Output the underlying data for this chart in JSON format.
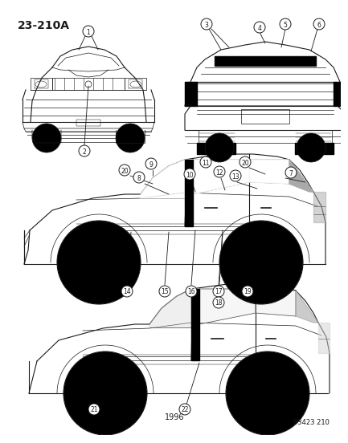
{
  "title": "23-210A",
  "year": "1996",
  "part_number": "93423 210",
  "bg_color": "#ffffff",
  "line_color": "#1a1a1a",
  "title_fontsize": 10,
  "year_fontsize": 7,
  "pn_fontsize": 6
}
